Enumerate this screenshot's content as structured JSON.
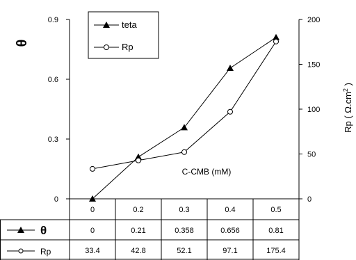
{
  "chart_data": {
    "type": "line",
    "categories": [
      "0",
      "0.2",
      "0.3",
      "0.4",
      "0.5"
    ],
    "xlabel": "C-CMB (mM)",
    "y_left": {
      "label": "θ",
      "ticks": [
        "0",
        "0.3",
        "0.6",
        "0.9"
      ],
      "ylim": [
        0,
        0.9
      ]
    },
    "y_right": {
      "label_prefix": "Rp ( Ω.cm",
      "label_sup": "2",
      "label_suffix": " )",
      "ticks": [
        "0",
        "50",
        "100",
        "150",
        "200"
      ],
      "ylim": [
        0,
        200
      ]
    },
    "series": [
      {
        "name": "teta",
        "axis": "left",
        "marker": "filled-triangle",
        "values": [
          0,
          0.21,
          0.358,
          0.656,
          0.81
        ],
        "value_labels": [
          "0",
          "0.21",
          "0.358",
          "0.656",
          "0.81"
        ]
      },
      {
        "name": "Rp",
        "axis": "right",
        "marker": "open-circle",
        "values": [
          33.4,
          42.8,
          52.1,
          97.1,
          175.4
        ],
        "value_labels": [
          "33.4",
          "42.8",
          "52.1",
          "97.1",
          "175.4"
        ]
      }
    ],
    "legend": {
      "placement": "top-left",
      "entries": [
        "teta",
        "Rp"
      ]
    },
    "table": {
      "row_labels": [
        "θ",
        "Rp"
      ]
    },
    "colors": {
      "line": "#000000",
      "background": "#ffffff"
    }
  }
}
